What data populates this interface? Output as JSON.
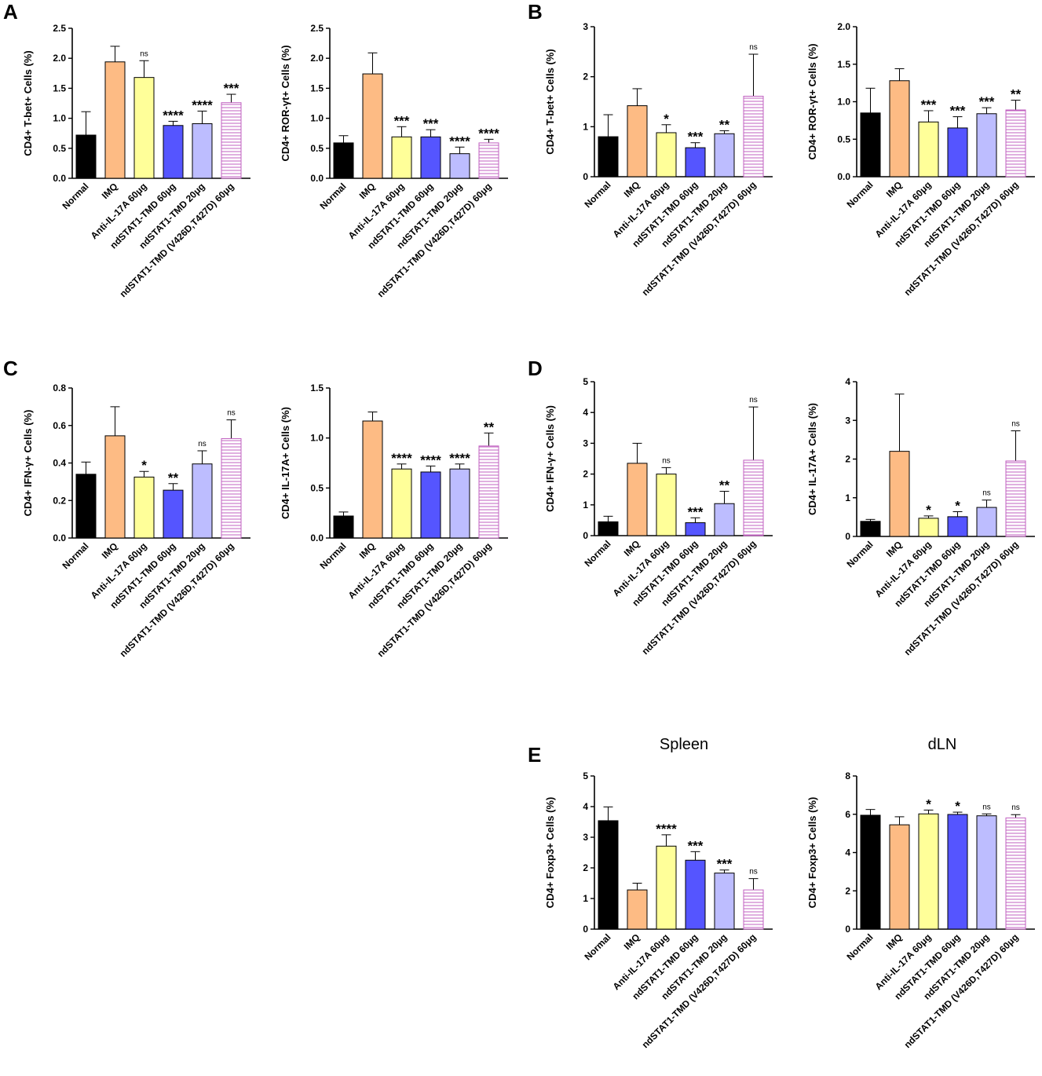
{
  "panel_letters": [
    "A",
    "B",
    "C",
    "D",
    "E"
  ],
  "subtitles": {
    "spleen": "Spleen",
    "dln": "dLN"
  },
  "legend": {
    "categories": [
      "Normal",
      "IMQ",
      "Anti-IL-17A 60μg",
      "ndSTAT1-TMD 60μg",
      "ndSTAT1-TMD 20μg",
      "ndSTAT1-TMD (V426D,T427D) 60μg"
    ],
    "colors": [
      "#000000",
      "#FDBB84",
      "#FFFF99",
      "#5555FF",
      "#BDBDFF",
      "#FFFFFF"
    ],
    "hatch_color": "#C060C0"
  },
  "chart_data": [
    {
      "id": "A1",
      "panel": "A",
      "type": "bar",
      "title": "",
      "ylabel": "CD4+ T-bet+ Cells (%)",
      "ylim": [
        0,
        2.5
      ],
      "ticks": [
        "0.0",
        "0.5",
        "1.0",
        "1.5",
        "2.0",
        "2.5"
      ],
      "values": [
        0.72,
        1.94,
        1.68,
        0.88,
        0.91,
        1.26
      ],
      "errors": [
        0.39,
        0.26,
        0.28,
        0.07,
        0.21,
        0.14
      ],
      "annotations": [
        "",
        "",
        "ns",
        "****",
        "****",
        "***"
      ]
    },
    {
      "id": "A2",
      "panel": "A",
      "type": "bar",
      "title": "",
      "ylabel": "CD4+ ROR-γt+ Cells (%)",
      "ylim": [
        0,
        2.5
      ],
      "ticks": [
        "0.0",
        "0.5",
        "1.0",
        "1.5",
        "2.0",
        "2.5"
      ],
      "values": [
        0.59,
        1.74,
        0.69,
        0.69,
        0.41,
        0.59
      ],
      "errors": [
        0.12,
        0.35,
        0.17,
        0.12,
        0.11,
        0.06
      ],
      "annotations": [
        "",
        "",
        "***",
        "***",
        "****",
        "****"
      ]
    },
    {
      "id": "B1",
      "panel": "B",
      "type": "bar",
      "title": "",
      "ylabel": "CD4+ T-bet+ Cells (%)",
      "ylim": [
        0,
        3
      ],
      "ticks": [
        "0",
        "1",
        "2",
        "3"
      ],
      "values": [
        0.8,
        1.42,
        0.88,
        0.58,
        0.86,
        1.61
      ],
      "errors": [
        0.44,
        0.34,
        0.16,
        0.1,
        0.06,
        0.84
      ],
      "annotations": [
        "",
        "",
        "*",
        "***",
        "**",
        "ns"
      ]
    },
    {
      "id": "B2",
      "panel": "B",
      "type": "bar",
      "title": "",
      "ylabel": "CD4+ ROR-γt+ Cells (%)",
      "ylim": [
        0,
        2.0
      ],
      "ticks": [
        "0.0",
        "0.5",
        "1.0",
        "1.5",
        "2.0"
      ],
      "values": [
        0.85,
        1.28,
        0.73,
        0.65,
        0.84,
        0.89
      ],
      "errors": [
        0.33,
        0.16,
        0.15,
        0.15,
        0.08,
        0.13
      ],
      "annotations": [
        "",
        "",
        "***",
        "***",
        "***",
        "**"
      ]
    },
    {
      "id": "C1",
      "panel": "C",
      "type": "bar",
      "title": "",
      "ylabel": "CD4+ IFN-γ+ Cells (%)",
      "ylim": [
        0,
        0.8
      ],
      "ticks": [
        "0.0",
        "0.2",
        "0.4",
        "0.6",
        "0.8"
      ],
      "values": [
        0.34,
        0.545,
        0.325,
        0.255,
        0.395,
        0.53
      ],
      "errors": [
        0.065,
        0.155,
        0.03,
        0.035,
        0.07,
        0.1
      ],
      "annotations": [
        "",
        "",
        "*",
        "**",
        "ns",
        "ns"
      ]
    },
    {
      "id": "C2",
      "panel": "C",
      "type": "bar",
      "title": "",
      "ylabel": "CD4+ IL-17A+ Cells (%)",
      "ylim": [
        0,
        1.5
      ],
      "ticks": [
        "0.0",
        "0.5",
        "1.0",
        "1.5"
      ],
      "values": [
        0.22,
        1.17,
        0.69,
        0.66,
        0.69,
        0.92
      ],
      "errors": [
        0.04,
        0.09,
        0.05,
        0.06,
        0.05,
        0.13
      ],
      "annotations": [
        "",
        "",
        "****",
        "****",
        "****",
        "**"
      ]
    },
    {
      "id": "D1",
      "panel": "D",
      "type": "bar",
      "title": "",
      "ylabel": "CD4+ IFN-γ+ Cells (%)",
      "ylim": [
        0,
        5
      ],
      "ticks": [
        "0",
        "1",
        "2",
        "3",
        "4",
        "5"
      ],
      "values": [
        0.45,
        2.35,
        2.0,
        0.42,
        1.04,
        2.45
      ],
      "errors": [
        0.18,
        0.65,
        0.21,
        0.16,
        0.4,
        1.73
      ],
      "annotations": [
        "",
        "",
        "ns",
        "***",
        "**",
        "ns"
      ]
    },
    {
      "id": "D2",
      "panel": "D",
      "type": "bar",
      "title": "",
      "ylabel": "CD4+ IL-17A+ Cells (%)",
      "ylim": [
        0,
        4
      ],
      "ticks": [
        "0",
        "1",
        "2",
        "3",
        "4"
      ],
      "values": [
        0.39,
        2.2,
        0.47,
        0.51,
        0.75,
        1.95
      ],
      "errors": [
        0.05,
        1.48,
        0.06,
        0.13,
        0.19,
        0.78
      ],
      "annotations": [
        "",
        "",
        "*",
        "*",
        "ns",
        "ns"
      ]
    },
    {
      "id": "E1",
      "panel": "E",
      "type": "bar",
      "title": "Spleen",
      "ylabel": "CD4+ Foxp3+ Cells (%)",
      "ylim": [
        0,
        5
      ],
      "ticks": [
        "0",
        "1",
        "2",
        "3",
        "4",
        "5"
      ],
      "values": [
        3.54,
        1.28,
        2.71,
        2.25,
        1.83,
        1.28
      ],
      "errors": [
        0.45,
        0.22,
        0.37,
        0.28,
        0.1,
        0.37
      ],
      "annotations": [
        "",
        "",
        "****",
        "***",
        "***",
        "ns"
      ]
    },
    {
      "id": "E2",
      "panel": "E",
      "type": "bar",
      "title": "dLN",
      "ylabel": "CD4+ Foxp3+ Cells (%)",
      "ylim": [
        0,
        8
      ],
      "ticks": [
        "0",
        "2",
        "4",
        "6",
        "8"
      ],
      "values": [
        5.95,
        5.45,
        6.02,
        5.99,
        5.92,
        5.81
      ],
      "errors": [
        0.3,
        0.42,
        0.2,
        0.12,
        0.1,
        0.17
      ],
      "annotations": [
        "",
        "",
        "*",
        "*",
        "ns",
        "ns"
      ]
    }
  ]
}
